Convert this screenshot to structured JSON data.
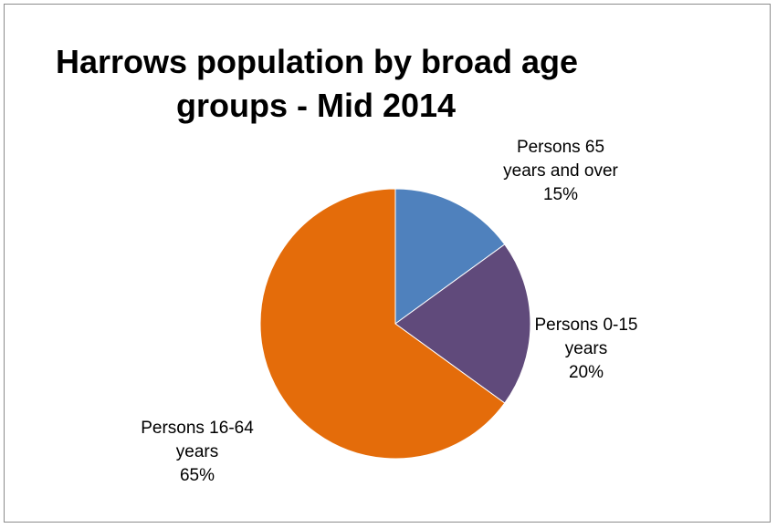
{
  "chart_data": {
    "type": "pie",
    "title_lines": [
      "Harrows population by broad age",
      "groups - Mid 2014"
    ],
    "slices": [
      {
        "label_lines": [
          "Persons 65",
          "years and over",
          "15%"
        ],
        "value": 15,
        "color": "#4f81bd"
      },
      {
        "label_lines": [
          "Persons 0-15",
          "years",
          "20%"
        ],
        "value": 20,
        "color": "#604a7b"
      },
      {
        "label_lines": [
          "Persons 16-64",
          "years",
          "65%"
        ],
        "value": 65,
        "color": "#e46c0a"
      }
    ],
    "legend": "none"
  }
}
